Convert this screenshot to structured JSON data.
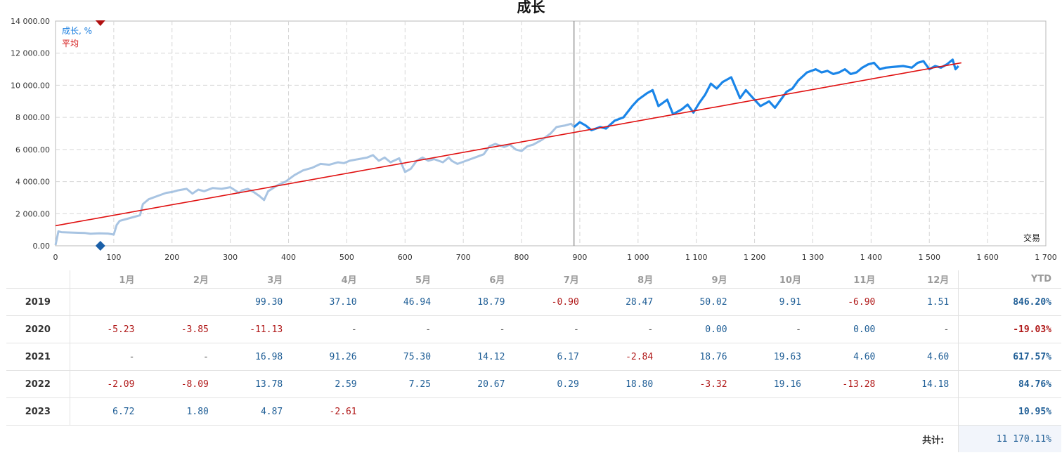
{
  "chart_data": {
    "type": "line",
    "title": "成长",
    "xlabel": "交易",
    "ylabel": "",
    "xlim": [
      0,
      1700
    ],
    "ylim": [
      0,
      14000
    ],
    "x_ticks": [
      "0",
      "100",
      "200",
      "300",
      "400",
      "500",
      "600",
      "700",
      "800",
      "900",
      "1 000",
      "1 100",
      "1 200",
      "1 300",
      "1 400",
      "1 500",
      "1 600",
      "1 700"
    ],
    "y_ticks": [
      "0.00",
      "2 000.00",
      "4 000.00",
      "6 000.00",
      "8 000.00",
      "10 000.00",
      "12 000.00",
      "14 000.00"
    ],
    "grid": true,
    "legend_position": "top-left",
    "divider_x": 890,
    "marker_x": 77,
    "colors": {
      "history": "#a8c4e2",
      "recent": "#1a85e8",
      "average": "#e01010",
      "marker": "#b01010",
      "marker_bottom": "#1a5fa8"
    },
    "series": [
      {
        "name": "成长, %",
        "x": [
          0,
          5,
          10,
          30,
          50,
          60,
          75,
          90,
          100,
          105,
          110,
          130,
          145,
          150,
          160,
          175,
          190,
          200,
          210,
          225,
          235,
          245,
          255,
          270,
          285,
          300,
          315,
          320,
          330,
          340,
          350,
          358,
          365,
          380,
          395,
          410,
          425,
          440,
          455,
          470,
          485,
          495,
          505,
          520,
          535,
          545,
          555,
          565,
          575,
          590,
          600,
          610,
          620,
          630,
          640,
          650,
          665,
          675,
          680,
          690,
          705,
          720,
          735,
          745,
          755,
          770,
          780,
          790,
          800,
          810,
          820,
          835,
          850,
          860,
          875,
          885,
          890,
          900,
          910,
          920,
          935,
          945,
          960,
          975,
          990,
          1000,
          1015,
          1025,
          1035,
          1050,
          1060,
          1075,
          1085,
          1095,
          1105,
          1115,
          1125,
          1135,
          1145,
          1160,
          1175,
          1185,
          1195,
          1210,
          1225,
          1235,
          1245,
          1255,
          1265,
          1275,
          1290,
          1305,
          1315,
          1325,
          1335,
          1345,
          1355,
          1365,
          1375,
          1385,
          1395,
          1405,
          1415,
          1425,
          1440,
          1455,
          1470,
          1480,
          1490,
          1500,
          1510,
          1520,
          1530,
          1540,
          1545,
          1550
        ],
        "y": [
          50,
          900,
          850,
          820,
          800,
          750,
          780,
          760,
          700,
          1300,
          1550,
          1750,
          1900,
          2600,
          2900,
          3100,
          3300,
          3350,
          3450,
          3550,
          3250,
          3500,
          3400,
          3600,
          3550,
          3650,
          3300,
          3450,
          3550,
          3350,
          3100,
          2850,
          3400,
          3750,
          4000,
          4400,
          4700,
          4850,
          5100,
          5050,
          5200,
          5150,
          5300,
          5400,
          5500,
          5650,
          5300,
          5500,
          5200,
          5450,
          4600,
          4800,
          5300,
          5500,
          5300,
          5400,
          5200,
          5500,
          5300,
          5100,
          5300,
          5500,
          5700,
          6200,
          6350,
          6150,
          6300,
          6000,
          5900,
          6200,
          6300,
          6600,
          7000,
          7400,
          7500,
          7600,
          7400,
          7700,
          7500,
          7200,
          7400,
          7300,
          7800,
          8000,
          8700,
          9100,
          9500,
          9700,
          8700,
          9100,
          8200,
          8500,
          8800,
          8300,
          8900,
          9400,
          10100,
          9800,
          10200,
          10500,
          9200,
          9700,
          9300,
          8700,
          9000,
          8600,
          9100,
          9600,
          9800,
          10300,
          10800,
          11000,
          10800,
          10900,
          10700,
          10800,
          11000,
          10700,
          10800,
          11100,
          11300,
          11400,
          11000,
          11100,
          11150,
          11200,
          11100,
          11400,
          11500,
          11000,
          11200,
          11100,
          11300,
          11600,
          11000,
          11200
        ]
      },
      {
        "name": "平均",
        "x": [
          0,
          1555
        ],
        "y": [
          1250,
          11400
        ]
      }
    ]
  },
  "table": {
    "months": [
      "1月",
      "2月",
      "3月",
      "4月",
      "5月",
      "6月",
      "7月",
      "8月",
      "9月",
      "10月",
      "11月",
      "12月"
    ],
    "ytd_header": "YTD",
    "rows": [
      {
        "year": "2019",
        "values": [
          "",
          "",
          "99.30",
          "37.10",
          "46.94",
          "18.79",
          "-0.90",
          "28.47",
          "50.02",
          "9.91",
          "-6.90",
          "1.51"
        ],
        "ytd": "846.20%"
      },
      {
        "year": "2020",
        "values": [
          "-5.23",
          "-3.85",
          "-11.13",
          "-",
          "-",
          "-",
          "-",
          "-",
          "0.00",
          "-",
          "0.00",
          "-"
        ],
        "ytd": "-19.03%"
      },
      {
        "year": "2021",
        "values": [
          "-",
          "-",
          "16.98",
          "91.26",
          "75.30",
          "14.12",
          "6.17",
          "-2.84",
          "18.76",
          "19.63",
          "4.60",
          "4.60"
        ],
        "ytd": "617.57%"
      },
      {
        "year": "2022",
        "values": [
          "-2.09",
          "-8.09",
          "13.78",
          "2.59",
          "7.25",
          "20.67",
          "0.29",
          "18.80",
          "-3.32",
          "19.16",
          "-13.28",
          "14.18"
        ],
        "ytd": "84.76%"
      },
      {
        "year": "2023",
        "values": [
          "6.72",
          "1.80",
          "4.87",
          "-2.61",
          "",
          "",
          "",
          "",
          "",
          "",
          "",
          ""
        ],
        "ytd": "10.95%"
      }
    ],
    "total_label": "共计:",
    "total_value": "11 170.11%"
  }
}
